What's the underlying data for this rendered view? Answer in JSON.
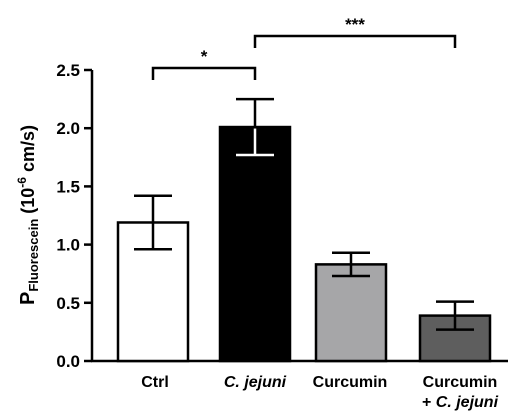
{
  "chart_data": {
    "type": "bar",
    "categories": [
      {
        "lines": [
          "Ctrl"
        ],
        "italic": [
          [
            false
          ]
        ]
      },
      {
        "lines": [
          "C. jejuni"
        ],
        "italic": [
          [
            true
          ]
        ]
      },
      {
        "lines": [
          "Curcumin"
        ],
        "italic": [
          [
            false
          ]
        ]
      },
      {
        "lines": [
          "Curcumin",
          "+ C. jejuni"
        ],
        "italic": [
          [
            false
          ],
          [
            false,
            true
          ]
        ]
      }
    ],
    "category_text": [
      "Ctrl",
      "C. jejuni",
      "Curcumin",
      "Curcumin + C. jejuni"
    ],
    "values": [
      1.19,
      2.01,
      0.83,
      0.39
    ],
    "errors": [
      0.23,
      0.24,
      0.1,
      0.12
    ],
    "colors": [
      "#ffffff",
      "#000000",
      "#a6a6a8",
      "#5e5e5e"
    ],
    "ylabel": {
      "main": "P",
      "sub": "Fluorescein",
      "unit_open": " (10",
      "sup": "-6",
      "unit_close": " cm/s)"
    },
    "ylim": [
      0,
      2.5
    ],
    "yticks": [
      "0.0",
      "0.5",
      "1.0",
      "1.5",
      "2.0",
      "2.5"
    ],
    "significance": [
      {
        "from": 0,
        "to": 1,
        "label": "*"
      },
      {
        "from": 1,
        "to": 3,
        "label": "***"
      }
    ],
    "grid": false,
    "legend": "none"
  }
}
